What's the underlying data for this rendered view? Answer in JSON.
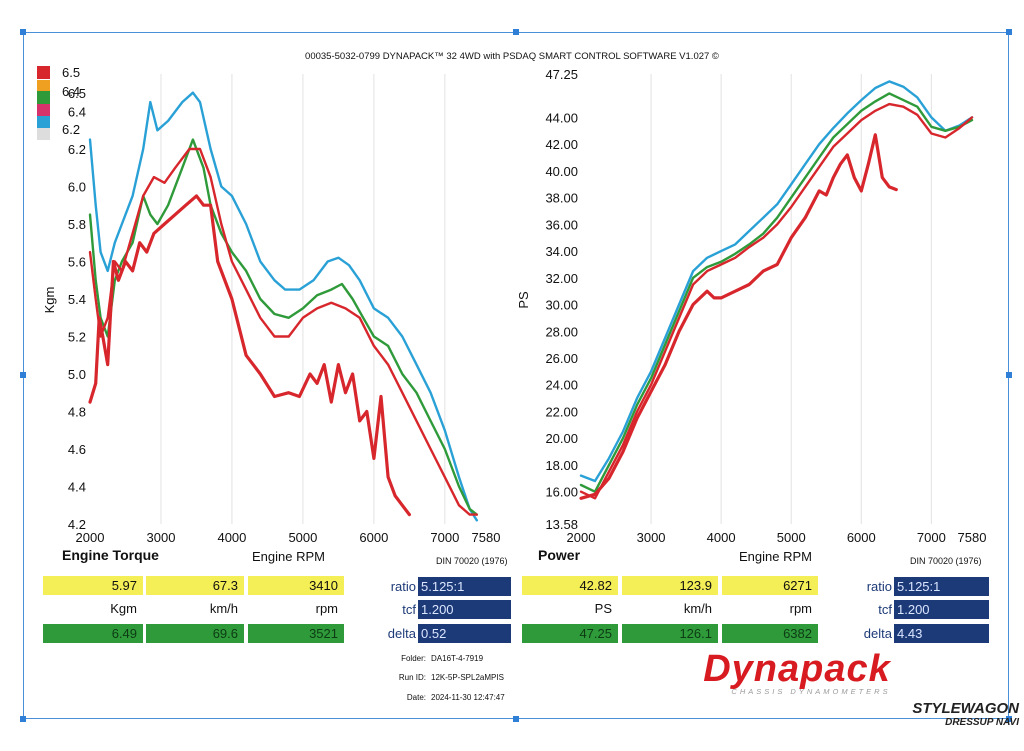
{
  "header": "00035-5032-0799 DYNAPACK™ 32 4WD with PSDAQ SMART CONTROL SOFTWARE V1.027 ©",
  "legend": {
    "values": [
      "6.5",
      "6.4",
      "6.2"
    ],
    "colors": [
      "#d7262c",
      "#f0a020",
      "#2f9a3a",
      "#d6336c",
      "#2aa1d6",
      "#cccccc"
    ]
  },
  "chart_data": [
    {
      "type": "line",
      "title": "Engine Torque",
      "xlabel": "Engine RPM",
      "ylabel": "Kgm",
      "din": "DIN 70020 (1976)",
      "xlim": [
        2000,
        7580
      ],
      "ylim": [
        4.2,
        6.6
      ],
      "xticks": [
        "2000",
        "3000",
        "4000",
        "5000",
        "6000",
        "7000",
        "7580"
      ],
      "yticks": [
        "4.2",
        "4.4",
        "4.6",
        "4.8",
        "5.0",
        "5.2",
        "5.4",
        "5.6",
        "5.8",
        "6.0",
        "6.2",
        "6.4",
        "6.5"
      ],
      "grid": "vertical",
      "series": [
        {
          "color": "#2aa1d6",
          "x": [
            2000,
            2080,
            2150,
            2250,
            2350,
            2450,
            2600,
            2750,
            2850,
            2950,
            3100,
            3300,
            3450,
            3550,
            3700,
            3850,
            4000,
            4200,
            4400,
            4600,
            4750,
            4950,
            5150,
            5350,
            5500,
            5650,
            5800,
            6000,
            6200,
            6400,
            6600,
            6800,
            7000,
            7200,
            7350,
            7450
          ],
          "y": [
            6.25,
            5.9,
            5.65,
            5.55,
            5.7,
            5.8,
            5.95,
            6.2,
            6.45,
            6.3,
            6.35,
            6.45,
            6.5,
            6.45,
            6.2,
            6.0,
            5.95,
            5.8,
            5.6,
            5.5,
            5.45,
            5.45,
            5.5,
            5.6,
            5.62,
            5.58,
            5.5,
            5.35,
            5.3,
            5.2,
            5.05,
            4.9,
            4.7,
            4.45,
            4.28,
            4.22
          ]
        },
        {
          "color": "#2f9a3a",
          "x": [
            2000,
            2080,
            2150,
            2250,
            2350,
            2450,
            2600,
            2750,
            2850,
            2950,
            3100,
            3300,
            3450,
            3600,
            3700,
            3850,
            4000,
            4200,
            4400,
            4600,
            4800,
            5000,
            5200,
            5400,
            5550,
            5700,
            5850,
            6000,
            6200,
            6400,
            6600,
            6800,
            7000,
            7200,
            7350,
            7450
          ],
          "y": [
            5.85,
            5.5,
            5.3,
            5.2,
            5.5,
            5.6,
            5.7,
            5.95,
            5.85,
            5.8,
            5.9,
            6.1,
            6.25,
            6.1,
            5.9,
            5.75,
            5.65,
            5.55,
            5.4,
            5.32,
            5.3,
            5.35,
            5.42,
            5.45,
            5.48,
            5.4,
            5.3,
            5.2,
            5.15,
            5.0,
            4.9,
            4.75,
            4.6,
            4.4,
            4.28,
            4.25
          ]
        },
        {
          "color": "#d7262c",
          "x": [
            2000,
            2080,
            2150,
            2250,
            2350,
            2450,
            2600,
            2750,
            2900,
            3050,
            3200,
            3400,
            3550,
            3700,
            3850,
            4000,
            4200,
            4400,
            4600,
            4800,
            5000,
            5200,
            5400,
            5600,
            5800,
            6000,
            6200,
            6400,
            6600,
            6800,
            7000,
            7200,
            7350,
            7450
          ],
          "y": [
            5.65,
            5.4,
            5.2,
            5.3,
            5.6,
            5.55,
            5.75,
            5.95,
            6.05,
            6.02,
            6.1,
            6.2,
            6.2,
            6.05,
            5.8,
            5.6,
            5.45,
            5.3,
            5.2,
            5.2,
            5.3,
            5.35,
            5.38,
            5.35,
            5.3,
            5.15,
            5.05,
            4.9,
            4.75,
            4.6,
            4.45,
            4.3,
            4.25,
            4.25
          ]
        },
        {
          "color": "#d7262c",
          "x": [
            2000,
            2080,
            2130,
            2180,
            2250,
            2330,
            2400,
            2500,
            2600,
            2700,
            2800,
            2900,
            3050,
            3200,
            3350,
            3500,
            3600,
            3700,
            3800,
            4000,
            4200,
            4400,
            4600,
            4800,
            4950,
            5100,
            5200,
            5300,
            5400,
            5500,
            5600,
            5700,
            5800,
            5900,
            6000,
            6100,
            6200,
            6300,
            6400,
            6500
          ],
          "y": [
            4.85,
            4.95,
            5.3,
            5.2,
            5.05,
            5.6,
            5.5,
            5.6,
            5.55,
            5.7,
            5.65,
            5.75,
            5.8,
            5.85,
            5.9,
            5.95,
            5.9,
            5.9,
            5.6,
            5.4,
            5.1,
            5.0,
            4.88,
            4.9,
            4.88,
            5.0,
            4.95,
            5.05,
            4.85,
            5.05,
            4.9,
            5.0,
            4.75,
            4.8,
            4.55,
            4.88,
            4.45,
            4.35,
            4.3,
            4.25
          ]
        }
      ]
    },
    {
      "type": "line",
      "title": "Power",
      "xlabel": "Engine RPM",
      "ylabel": "PS",
      "din": "DIN 70020 (1976)",
      "xlim": [
        2000,
        7580
      ],
      "ylim": [
        13.58,
        47.25
      ],
      "xticks": [
        "2000",
        "3000",
        "4000",
        "5000",
        "6000",
        "7000",
        "7580"
      ],
      "yticks": [
        "13.58",
        "16.00",
        "18.00",
        "20.00",
        "22.00",
        "24.00",
        "26.00",
        "28.00",
        "30.00",
        "32.00",
        "34.00",
        "36.00",
        "38.00",
        "40.00",
        "42.00",
        "44.00",
        "47.25"
      ],
      "grid": "vertical",
      "series": [
        {
          "color": "#2aa1d6",
          "x": [
            2000,
            2200,
            2400,
            2600,
            2800,
            3000,
            3200,
            3400,
            3600,
            3800,
            4000,
            4200,
            4400,
            4600,
            4800,
            5000,
            5200,
            5400,
            5600,
            5800,
            6000,
            6200,
            6400,
            6600,
            6800,
            7000,
            7200,
            7400,
            7580
          ],
          "y": [
            17.2,
            16.8,
            18.5,
            20.5,
            23,
            25,
            27.5,
            30,
            32.5,
            33.5,
            34,
            34.5,
            35.5,
            36.5,
            37.5,
            39,
            40.5,
            42,
            43.2,
            44.3,
            45.3,
            46.2,
            46.7,
            46.3,
            45.5,
            44,
            43,
            43.4,
            44
          ]
        },
        {
          "color": "#2f9a3a",
          "x": [
            2000,
            2200,
            2400,
            2600,
            2800,
            3000,
            3200,
            3400,
            3600,
            3800,
            4000,
            4200,
            4400,
            4600,
            4800,
            5000,
            5200,
            5400,
            5600,
            5800,
            6000,
            6200,
            6400,
            6600,
            6800,
            7000,
            7200,
            7400,
            7580
          ],
          "y": [
            16.5,
            16,
            18,
            20,
            22.5,
            24.5,
            27,
            29.5,
            32,
            32.8,
            33.2,
            33.8,
            34.5,
            35.3,
            36.5,
            38,
            39.5,
            41,
            42.5,
            43.5,
            44.5,
            45.2,
            45.8,
            45.3,
            44.8,
            43.3,
            43,
            43.3,
            43.8
          ]
        },
        {
          "color": "#d7262c",
          "x": [
            2000,
            2200,
            2400,
            2600,
            2800,
            3000,
            3200,
            3400,
            3600,
            3800,
            4000,
            4200,
            4400,
            4600,
            4800,
            5000,
            5200,
            5400,
            5600,
            5800,
            6000,
            6200,
            6400,
            6600,
            6800,
            7000,
            7200,
            7400,
            7580
          ],
          "y": [
            16,
            15.5,
            17.5,
            19.5,
            22,
            24,
            26.5,
            29,
            31.5,
            32.5,
            33,
            33.5,
            34.3,
            35,
            36,
            37.3,
            38.8,
            40.3,
            41.8,
            42.8,
            43.8,
            44.5,
            45,
            44.8,
            44.2,
            42.8,
            42.5,
            43.2,
            44
          ]
        },
        {
          "color": "#d7262c",
          "x": [
            2000,
            2200,
            2400,
            2600,
            2800,
            3000,
            3200,
            3400,
            3600,
            3800,
            3900,
            4000,
            4200,
            4400,
            4600,
            4800,
            5000,
            5200,
            5400,
            5500,
            5600,
            5700,
            5800,
            5900,
            6000,
            6100,
            6200,
            6300,
            6400,
            6500
          ],
          "y": [
            15.5,
            15.8,
            17,
            19,
            21.5,
            23.5,
            25.5,
            28,
            30,
            31,
            30.5,
            30.5,
            31,
            31.5,
            32.5,
            33,
            35,
            36.5,
            38.5,
            38.2,
            39.5,
            40.5,
            41.2,
            39.5,
            38.5,
            40.5,
            42.7,
            39.5,
            38.8,
            38.6
          ]
        }
      ]
    }
  ],
  "panels": {
    "left": {
      "yellow": [
        "5.97",
        "67.3",
        "3410"
      ],
      "units": [
        "Kgm",
        "km/h",
        "rpm"
      ],
      "green": [
        "6.49",
        "69.6",
        "3521"
      ],
      "ratio_label": "ratio",
      "ratio": "5.125:1",
      "tcf_label": "tcf",
      "tcf": "1.200",
      "delta_label": "delta",
      "delta": "0.52"
    },
    "right": {
      "yellow": [
        "42.82",
        "123.9",
        "6271"
      ],
      "units": [
        "PS",
        "km/h",
        "rpm"
      ],
      "green": [
        "47.25",
        "126.1",
        "6382"
      ],
      "ratio_label": "ratio",
      "ratio": "5.125:1",
      "tcf_label": "tcf",
      "tcf": "1.200",
      "delta_label": "delta",
      "delta": "4.43"
    }
  },
  "run_info": {
    "folder_label": "Folder:",
    "folder": "DA16T-4-7919",
    "runid_label": "Run ID:",
    "runid": "12K-5P-SPL2aMPIS",
    "date_label": "Date:",
    "date": "2024-11-30 12:47:47"
  },
  "brand": {
    "name": "Dynapack",
    "tagline": "CHASSIS DYNAMOMETERS"
  },
  "watermark": {
    "line1": "STYLEWAGON",
    "line2": "DRESSUP NAVI"
  }
}
